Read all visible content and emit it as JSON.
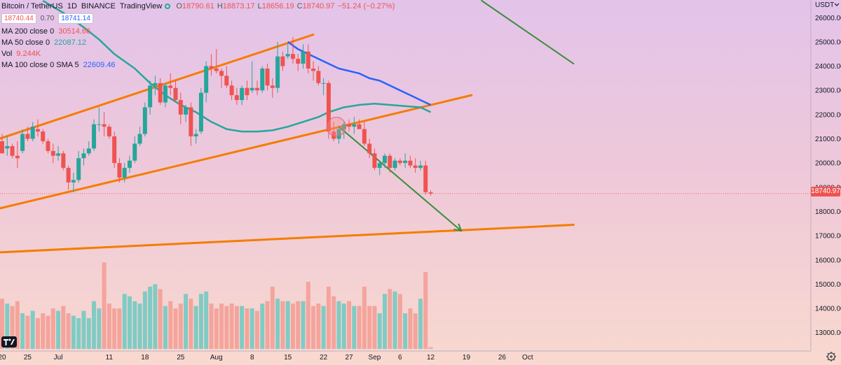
{
  "header": {
    "symbol": "Bitcoin / TetherUS",
    "interval": "1D",
    "exchange": "BINANCE",
    "platform": "TradingView",
    "ohlc": {
      "o_label": "O",
      "o": "18790.61",
      "h_label": "H",
      "h": "18873.17",
      "l_label": "L",
      "l": "18656.19",
      "c_label": "C",
      "c": "18740.97",
      "change": "−51.24 (−0.27%)"
    },
    "sell_price": "18740.44",
    "spread": "0.70",
    "buy_price": "18741.14"
  },
  "indicators": [
    {
      "label": "MA 200 close 0",
      "value": "30514.66",
      "color": "#ef5350"
    },
    {
      "label": "MA 50 close 0",
      "value": "22087.12",
      "color": "#26a69a"
    },
    {
      "label": "Vol",
      "value": "9.244K",
      "color": "#ef5350"
    },
    {
      "label": "MA 100 close 0 SMA 5",
      "value": "22609.46",
      "color": "#2962ff"
    }
  ],
  "axis": {
    "currency": "USDT",
    "current_price": "18740.97"
  },
  "icons": {
    "logo": "tradingview-logo-icon",
    "settings": "gear-icon",
    "live": "live-indicator-icon"
  },
  "colors": {
    "up": "#26a69a",
    "down": "#ef5350",
    "ma50": "#26a69a",
    "ma100": "#2962ff",
    "channel": "#f57c00",
    "arrow": "#388e3c",
    "volume_up": "#80cbc4",
    "volume_down": "#f4a49c"
  },
  "chart_data": {
    "type": "candlestick",
    "ylim": [
      12300,
      26700
    ],
    "y_ticks": [
      13000,
      14000,
      15000,
      16000,
      17000,
      18000,
      19000,
      20000,
      21000,
      22000,
      23000,
      24000,
      25000,
      26000
    ],
    "x_tick_labels": [
      {
        "label": "20",
        "day": 0
      },
      {
        "label": "25",
        "day": 5
      },
      {
        "label": "Jul",
        "day": 11
      },
      {
        "label": "11",
        "day": 21
      },
      {
        "label": "18",
        "day": 28
      },
      {
        "label": "25",
        "day": 35
      },
      {
        "label": "Aug",
        "day": 42
      },
      {
        "label": "8",
        "day": 49
      },
      {
        "label": "15",
        "day": 56
      },
      {
        "label": "22",
        "day": 63
      },
      {
        "label": "27",
        "day": 68
      },
      {
        "label": "Sep",
        "day": 73
      },
      {
        "label": "6",
        "day": 78
      },
      {
        "label": "12",
        "day": 84
      },
      {
        "label": "19",
        "day": 91
      },
      {
        "label": "26",
        "day": 98
      },
      {
        "label": "Oct",
        "day": 103
      }
    ],
    "candles": [
      [
        20900,
        21200,
        20400,
        20400,
        14400
      ],
      [
        20600,
        21100,
        20300,
        20700,
        14200
      ],
      [
        20700,
        20800,
        20200,
        20300,
        14100
      ],
      [
        20300,
        20900,
        19800,
        20200,
        14300
      ],
      [
        20500,
        21400,
        20400,
        21200,
        13800
      ],
      [
        21200,
        21500,
        20900,
        21000,
        13700
      ],
      [
        21000,
        21700,
        20900,
        21500,
        13900
      ],
      [
        21400,
        21800,
        21100,
        21300,
        13600
      ],
      [
        21300,
        21400,
        20800,
        20900,
        13800
      ],
      [
        20900,
        21000,
        20400,
        20500,
        13700
      ],
      [
        20500,
        20800,
        20000,
        20300,
        14000
      ],
      [
        20300,
        20700,
        20100,
        20400,
        13900
      ],
      [
        20400,
        20500,
        19700,
        19800,
        14100
      ],
      [
        19800,
        19900,
        18900,
        19200,
        13800
      ],
      [
        19200,
        19600,
        18800,
        19300,
        13700
      ],
      [
        19300,
        20500,
        19200,
        20200,
        13600
      ],
      [
        20200,
        20600,
        19900,
        20400,
        13900
      ],
      [
        20400,
        20900,
        20300,
        20600,
        13600
      ],
      [
        20600,
        21800,
        20500,
        21600,
        14300
      ],
      [
        21600,
        22300,
        21300,
        21600,
        14000
      ],
      [
        21600,
        22100,
        21100,
        21500,
        15900
      ],
      [
        21500,
        21600,
        21000,
        21100,
        14200
      ],
      [
        21100,
        21300,
        19800,
        20000,
        14000
      ],
      [
        20000,
        20200,
        19200,
        19400,
        14000
      ],
      [
        19400,
        20000,
        19200,
        19800,
        14600
      ],
      [
        19800,
        20300,
        19600,
        20100,
        14500
      ],
      [
        20100,
        21100,
        20000,
        20800,
        14300
      ],
      [
        20800,
        21500,
        20700,
        21200,
        14200
      ],
      [
        21200,
        22500,
        21100,
        22300,
        14700
      ],
      [
        22300,
        23400,
        22000,
        23200,
        14900
      ],
      [
        23200,
        23600,
        22800,
        23300,
        15000
      ],
      [
        23300,
        23500,
        22400,
        22500,
        14800
      ],
      [
        22500,
        23300,
        22300,
        23200,
        14100
      ],
      [
        23200,
        23700,
        22800,
        23100,
        14300
      ],
      [
        23100,
        23400,
        22500,
        22600,
        14000
      ],
      [
        22600,
        22900,
        21600,
        22000,
        14200
      ],
      [
        22000,
        22400,
        21700,
        22300,
        14600
      ],
      [
        22300,
        22500,
        20700,
        21100,
        14400
      ],
      [
        21100,
        21400,
        20800,
        21200,
        14100
      ],
      [
        21300,
        23100,
        21200,
        22900,
        14600
      ],
      [
        22900,
        24200,
        22500,
        24000,
        14700
      ],
      [
        24000,
        24500,
        23600,
        23900,
        14200
      ],
      [
        23900,
        24700,
        23700,
        23800,
        14000
      ],
      [
        23800,
        23900,
        23100,
        23600,
        14200
      ],
      [
        23600,
        24000,
        23100,
        23200,
        14100
      ],
      [
        23200,
        23400,
        22600,
        22800,
        14200
      ],
      [
        22800,
        23100,
        22400,
        22600,
        14100
      ],
      [
        22600,
        23200,
        22400,
        23100,
        14100
      ],
      [
        23100,
        23400,
        22600,
        22800,
        14000
      ],
      [
        23000,
        24200,
        22900,
        23100,
        14000
      ],
      [
        23100,
        23400,
        22800,
        23000,
        13900
      ],
      [
        23000,
        24000,
        22900,
        23900,
        14200
      ],
      [
        23900,
        24100,
        23000,
        23200,
        14300
      ],
      [
        23200,
        23500,
        22700,
        23100,
        14900
      ],
      [
        23100,
        25000,
        22900,
        24400,
        14400
      ],
      [
        24400,
        24600,
        23800,
        24000,
        14300
      ],
      [
        24400,
        24900,
        24300,
        24500,
        14300
      ],
      [
        24500,
        25200,
        24100,
        24300,
        14200
      ],
      [
        24300,
        24500,
        23800,
        24100,
        14300
      ],
      [
        24100,
        24900,
        23900,
        24600,
        14300
      ],
      [
        24600,
        24900,
        23700,
        23900,
        15100
      ],
      [
        23900,
        24200,
        23400,
        23800,
        14100
      ],
      [
        23800,
        24000,
        23200,
        23300,
        14200
      ],
      [
        23300,
        23500,
        22800,
        23300,
        14100
      ],
      [
        23300,
        23400,
        21000,
        21300,
        14900
      ],
      [
        21300,
        21700,
        20900,
        21000,
        14500
      ],
      [
        21000,
        21500,
        20800,
        21400,
        14300
      ],
      [
        21400,
        21700,
        21000,
        21600,
        14200
      ],
      [
        21600,
        21800,
        21300,
        21500,
        14300
      ],
      [
        21500,
        21900,
        21200,
        21600,
        14100
      ],
      [
        21600,
        21800,
        21400,
        21400,
        14100
      ],
      [
        21400,
        21700,
        20700,
        20800,
        14900
      ],
      [
        20800,
        21000,
        20200,
        20400,
        14100
      ],
      [
        20400,
        20600,
        19700,
        19800,
        14100
      ],
      [
        19800,
        20100,
        19500,
        20000,
        13800
      ],
      [
        20000,
        20400,
        19800,
        20300,
        14600
      ],
      [
        20300,
        20400,
        19600,
        19800,
        14800
      ],
      [
        19800,
        20200,
        19700,
        20100,
        14700
      ],
      [
        20100,
        20200,
        19900,
        20000,
        14600
      ],
      [
        20000,
        20400,
        19800,
        20100,
        13800
      ],
      [
        20100,
        20300,
        19800,
        19900,
        14000
      ],
      [
        19900,
        20200,
        19600,
        19800,
        13800
      ],
      [
        19800,
        20100,
        19700,
        19900,
        14400
      ],
      [
        19900,
        20100,
        18700,
        18800,
        15500
      ],
      [
        18790.61,
        18873.17,
        18656.19,
        18740.97,
        12400
      ]
    ],
    "ma50": [
      [
        8,
        26700
      ],
      [
        12,
        26200
      ],
      [
        16,
        25600
      ],
      [
        19,
        25100
      ],
      [
        22,
        24500
      ],
      [
        26,
        23900
      ],
      [
        29,
        23300
      ],
      [
        32,
        22800
      ],
      [
        35,
        22400
      ],
      [
        38,
        22100
      ],
      [
        41,
        21700
      ],
      [
        44,
        21400
      ],
      [
        47,
        21300
      ],
      [
        50,
        21300
      ],
      [
        53,
        21350
      ],
      [
        56,
        21500
      ],
      [
        59,
        21700
      ],
      [
        62,
        21900
      ],
      [
        64,
        22100
      ],
      [
        67,
        22300
      ],
      [
        70,
        22400
      ],
      [
        73,
        22450
      ],
      [
        76,
        22400
      ],
      [
        79,
        22350
      ],
      [
        82,
        22300
      ],
      [
        84,
        22100
      ]
    ],
    "ma100": [
      [
        56,
        25000
      ],
      [
        58,
        24700
      ],
      [
        60,
        24500
      ],
      [
        62,
        24300
      ],
      [
        64,
        24100
      ],
      [
        66,
        23900
      ],
      [
        68,
        23800
      ],
      [
        70,
        23700
      ],
      [
        72,
        23500
      ],
      [
        74,
        23400
      ],
      [
        76,
        23200
      ],
      [
        78,
        23000
      ],
      [
        80,
        22800
      ],
      [
        82,
        22600
      ],
      [
        84,
        22400
      ]
    ],
    "trendlines": [
      {
        "name": "channel-upper",
        "from": [
          -2,
          20900
        ],
        "to": [
          61,
          25300
        ],
        "color": "#f57c00"
      },
      {
        "name": "channel-lower",
        "from": [
          -2,
          18050
        ],
        "to": [
          92,
          22800
        ],
        "color": "#f57c00"
      },
      {
        "name": "long-support",
        "from": [
          -2,
          16300
        ],
        "to": [
          112,
          17450
        ],
        "color": "#f57c00"
      },
      {
        "name": "resistance-top-right",
        "from": [
          94,
          26700
        ],
        "to": [
          112,
          24100
        ],
        "color": "#388e3c"
      },
      {
        "name": "breakdown-arrow",
        "from": [
          66,
          21500
        ],
        "to": [
          90,
          17200
        ],
        "color": "#388e3c",
        "arrow": true
      }
    ],
    "highlight_circle": {
      "center": [
        65.5,
        21500
      ],
      "radius_days": 1.2
    }
  }
}
